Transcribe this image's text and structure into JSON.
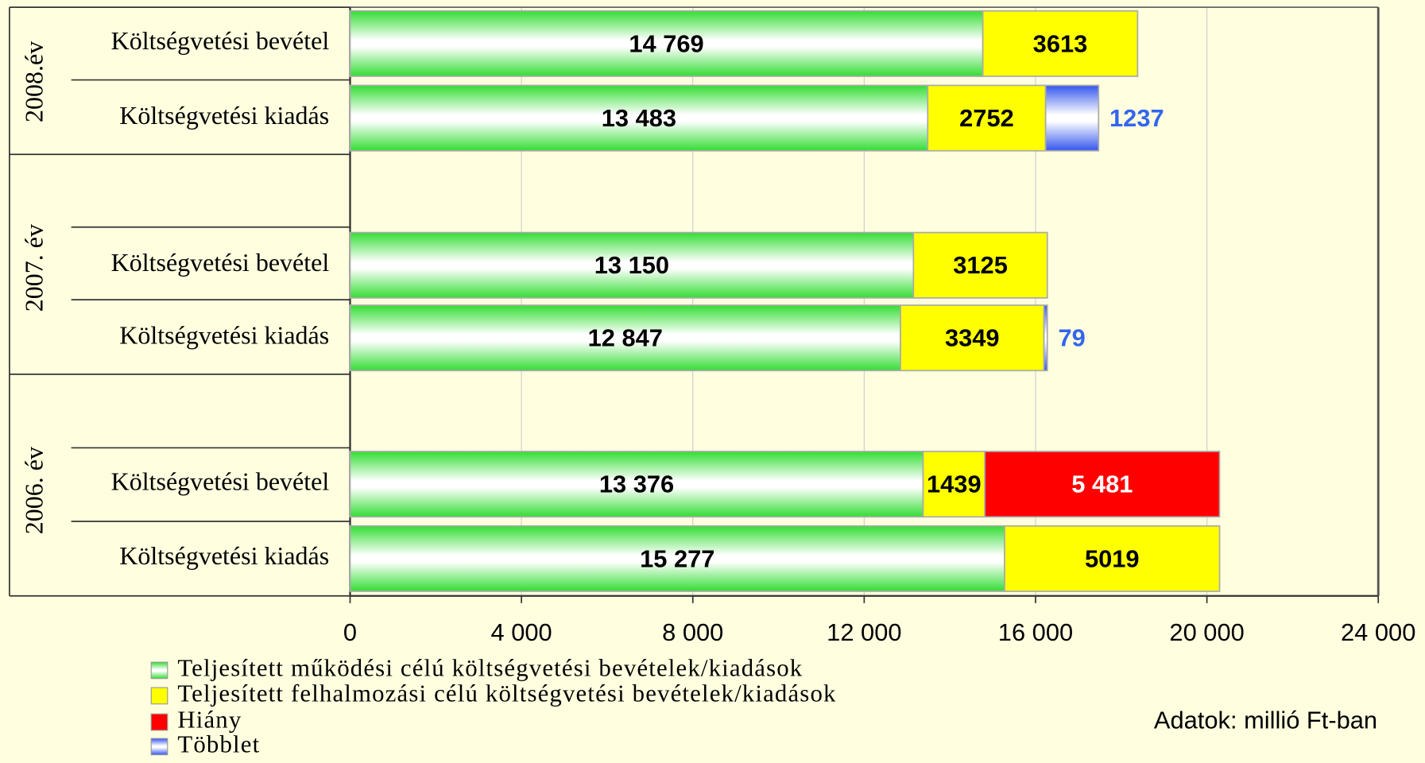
{
  "chart_data": {
    "type": "bar",
    "orientation": "horizontal",
    "stacked": true,
    "groups": [
      "2008.év",
      "2007. év",
      "2006. év"
    ],
    "categories": [
      "Költségvetési bevétel",
      "Költségvetési kiadás",
      "Költségvetési bevétel",
      "Költségvetési kiadás",
      "Költségvetési bevétel",
      "Költségvetési kiadás"
    ],
    "series": [
      {
        "name": "Teljesített működési célú költségvetési bevételek/kiadások",
        "color": "#33dd33",
        "values": [
          14769,
          13483,
          13150,
          12847,
          13376,
          15277
        ],
        "value_labels": [
          "14 769",
          "13 483",
          "13 150",
          "12 847",
          "13 376",
          "15 277"
        ]
      },
      {
        "name": "Teljesített felhalmozási célú költségvetési bevételek/kiadások",
        "color": "#ffff00",
        "values": [
          3613,
          2752,
          3125,
          3349,
          1439,
          5019
        ]
      },
      {
        "name": "Hiány",
        "color": "#ff0000",
        "values": [
          null,
          null,
          null,
          null,
          5481,
          null
        ],
        "value_labels": [
          null,
          null,
          null,
          null,
          "5 481",
          null
        ]
      },
      {
        "name": "Többlet",
        "color": "#3355ee",
        "values": [
          null,
          1237,
          null,
          79,
          null,
          null
        ]
      }
    ],
    "xlim": [
      0,
      24000
    ],
    "xticks": [
      0,
      {
        "value": 4000,
        "label": "4 000"
      },
      {
        "value": 8000,
        "label": "8 000"
      },
      {
        "value": 12000,
        "label": "12 000"
      },
      {
        "value": 16000,
        "label": "16 000"
      },
      {
        "value": 20000,
        "label": "20 000"
      },
      {
        "value": 24000,
        "label": "24 000"
      }
    ],
    "grid": true,
    "note": "Adatok: millió Ft-ban"
  }
}
